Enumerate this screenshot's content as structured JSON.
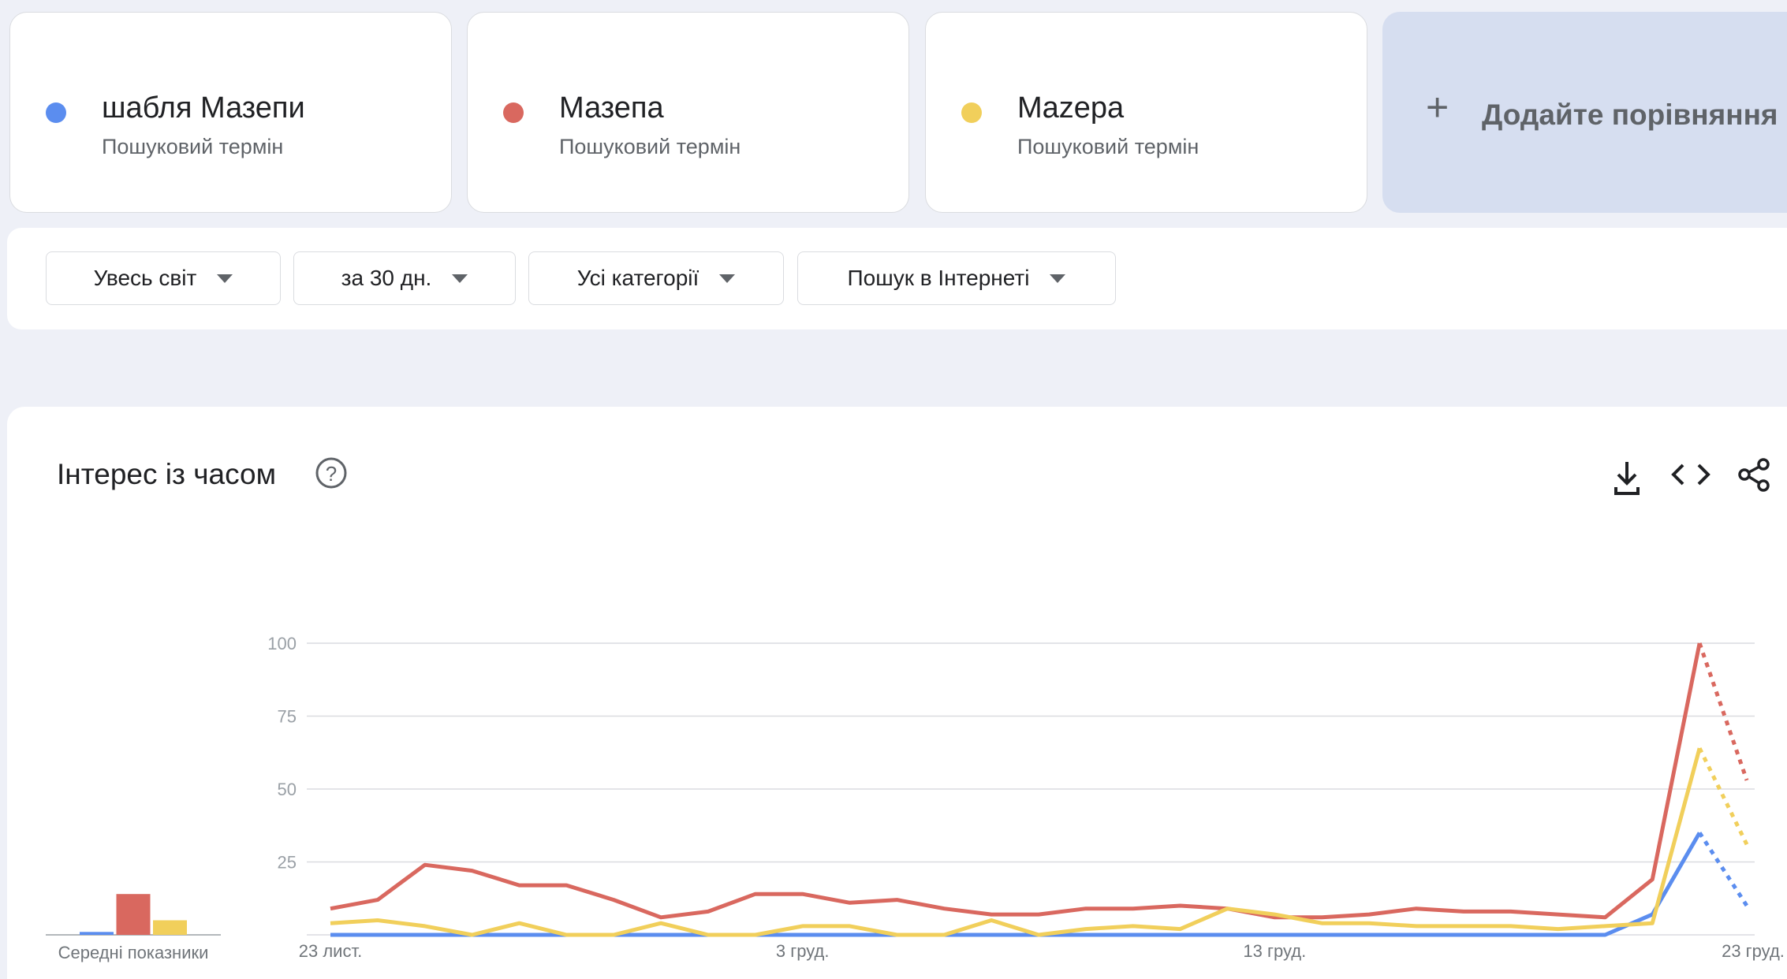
{
  "terms": [
    {
      "name": "шабля Мазепи",
      "subtitle": "Пошуковий термін",
      "color": "#5b8def"
    },
    {
      "name": "Мазепа",
      "subtitle": "Пошуковий термін",
      "color": "#d9685f"
    },
    {
      "name": "Mazepa",
      "subtitle": "Пошуковий термін",
      "color": "#f1cf5b"
    }
  ],
  "add_compare": "Додайте порівняння",
  "filters": [
    "Увесь світ",
    "за 30 дн.",
    "Усі категорії",
    "Пошук в Інтернеті"
  ],
  "chart_data": {
    "type": "line",
    "title": "Інтерес із часом",
    "categories": [
      "23 лист.",
      null,
      null,
      null,
      null,
      null,
      null,
      null,
      null,
      null,
      "3 груд.",
      null,
      null,
      null,
      null,
      null,
      null,
      null,
      null,
      null,
      "13 груд.",
      null,
      null,
      null,
      null,
      null,
      null,
      null,
      null,
      null,
      "23 груд."
    ],
    "series": [
      {
        "name": "шабля Мазепи",
        "color": "#5b8def",
        "values": [
          0,
          0,
          0,
          0,
          0,
          0,
          0,
          0,
          0,
          0,
          0,
          0,
          0,
          0,
          0,
          0,
          0,
          0,
          0,
          0,
          0,
          0,
          0,
          0,
          0,
          0,
          0,
          0,
          7,
          35,
          10
        ],
        "average": 1
      },
      {
        "name": "Мазепа",
        "color": "#d9685f",
        "values": [
          9,
          12,
          24,
          22,
          17,
          17,
          12,
          6,
          8,
          14,
          14,
          11,
          12,
          9,
          7,
          7,
          9,
          9,
          10,
          9,
          6,
          6,
          7,
          9,
          8,
          8,
          7,
          6,
          19,
          100,
          53
        ],
        "average": 14
      },
      {
        "name": "Mazepa",
        "color": "#f1cf5b",
        "values": [
          4,
          5,
          3,
          0,
          4,
          0,
          0,
          4,
          0,
          0,
          3,
          3,
          0,
          0,
          5,
          0,
          2,
          3,
          2,
          9,
          7,
          4,
          4,
          3,
          3,
          3,
          2,
          3,
          4,
          64,
          31
        ],
        "average": 5
      }
    ],
    "average_label": "Середні показники",
    "partial_last": true,
    "ylim": [
      0,
      100
    ],
    "yticks": [
      25,
      50,
      75,
      100
    ],
    "grid": true
  }
}
